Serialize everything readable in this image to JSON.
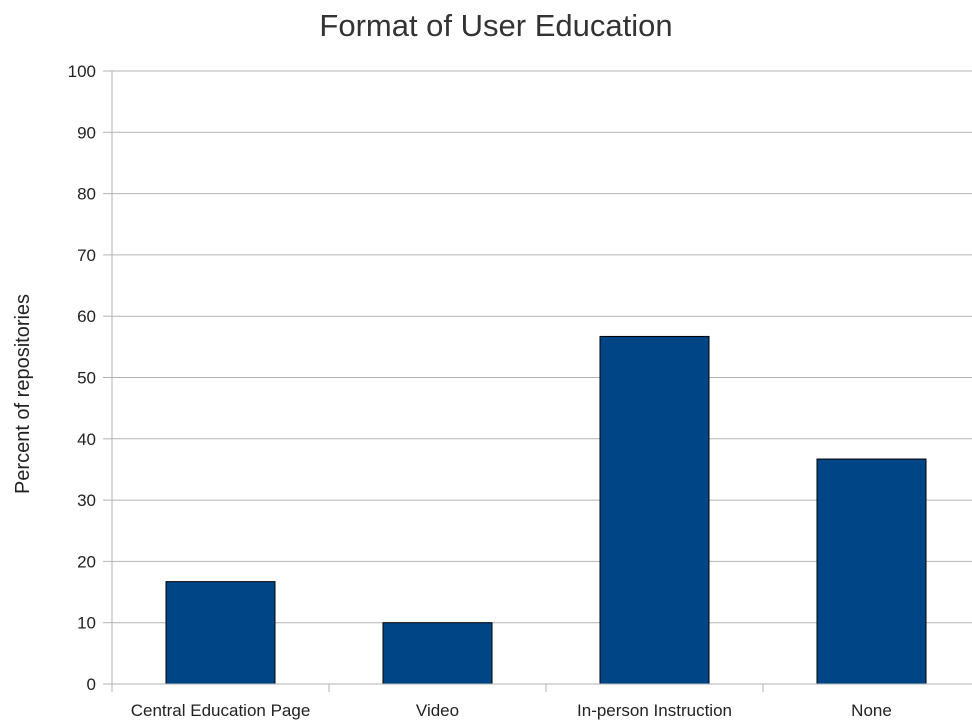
{
  "chart_data": {
    "type": "bar",
    "title": "Format of User Education",
    "xlabel": "",
    "ylabel": "Percent of repositories",
    "categories": [
      "Central Education Page",
      "Video",
      "In-person Instruction",
      "None"
    ],
    "values": [
      16.7,
      10,
      56.7,
      36.7
    ],
    "ylim": [
      0,
      100
    ],
    "yticks": [
      0,
      10,
      20,
      30,
      40,
      50,
      60,
      70,
      80,
      90,
      100
    ],
    "ytick_labels": [
      "0",
      "10",
      "20",
      "30",
      "40",
      "50",
      "60",
      "70",
      "80",
      "90",
      "100"
    ],
    "grid": true,
    "legend": "none",
    "bar_color": "#004586",
    "grid_color": "#b3b3b3"
  }
}
